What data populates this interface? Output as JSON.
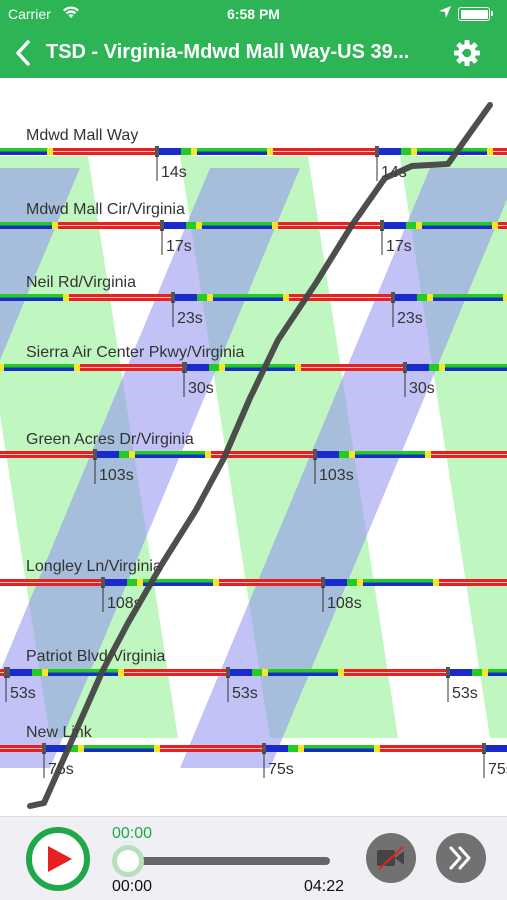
{
  "status_bar": {
    "carrier": "Carrier",
    "time": "6:58 PM",
    "icons": [
      "wifi-icon",
      "location-arrow-icon",
      "battery-icon"
    ]
  },
  "nav": {
    "title": "TSD - Virginia-Mdwd Mall Way-US 39...",
    "back_icon": "chevron-left-icon",
    "settings_icon": "gear-icon"
  },
  "diagram": {
    "intersections": [
      {
        "name": "Mdwd Mall Way",
        "cycle_label": "14s"
      },
      {
        "name": "Mdwd Mall Cir/Virginia",
        "cycle_label": "17s"
      },
      {
        "name": "Neil Rd/Virginia",
        "cycle_label": "23s"
      },
      {
        "name": "Sierra Air Center Pkwy/Virginia",
        "cycle_label": "30s"
      },
      {
        "name": "Green Acres Dr/Virginia",
        "cycle_label": "103s"
      },
      {
        "name": "Longley Ln/Virginia",
        "cycle_label": "108s"
      },
      {
        "name": "Patriot Blvd/Virginia",
        "cycle_label": "53s"
      },
      {
        "name": "New Link",
        "cycle_label": "75s"
      }
    ],
    "colors": {
      "red": "#e8201f",
      "green": "#22cc22",
      "blue": "#1a2bcc",
      "yellow": "#f5e62a",
      "forward_band": "#8dee8d",
      "reverse_band": "#8f8ff0",
      "trajectory": "#444444"
    }
  },
  "player": {
    "current_time": "00:00",
    "start_time": "00:00",
    "end_time": "04:22",
    "progress": 0.0,
    "play_icon": "play-icon",
    "video_icon": "video-off-icon",
    "fast_forward_icon": "fast-forward-icon"
  }
}
